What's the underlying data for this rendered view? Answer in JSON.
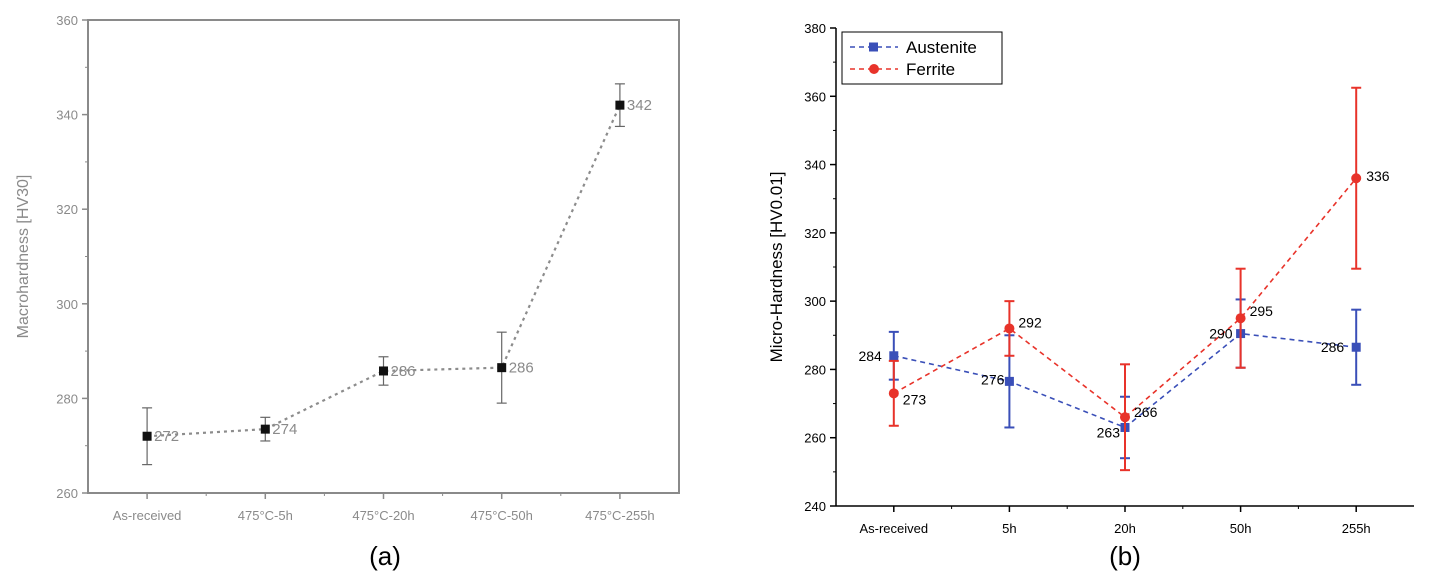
{
  "chart_data": [
    {
      "type": "line",
      "panel_label": "(a)",
      "ylabel": "Macrohardness [HV30]",
      "xlabel": "",
      "ylim": [
        260,
        360
      ],
      "yticks": [
        260,
        280,
        300,
        320,
        340,
        360
      ],
      "categories": [
        "As-received",
        "475°C-5h",
        "475°C-20h",
        "475°C-50h",
        "475°C-255h"
      ],
      "grid": false,
      "series": [
        {
          "values": [
            272,
            273.5,
            285.8,
            286.5,
            342
          ],
          "data_labels": [
            "272",
            "274",
            "286",
            "286",
            "342"
          ],
          "error": [
            6,
            2.5,
            3,
            7.5,
            4.5
          ],
          "color": "#8c8c8c",
          "marker_color": "#111111",
          "marker": "square",
          "line_style": "dotted"
        }
      ]
    },
    {
      "type": "line",
      "panel_label": "(b)",
      "ylabel": "Micro-Hardness [HV0.01]",
      "xlabel": "",
      "ylim": [
        240,
        380
      ],
      "yticks": [
        240,
        260,
        280,
        300,
        320,
        340,
        360,
        380
      ],
      "categories": [
        "As-received",
        "5h",
        "20h",
        "50h",
        "255h"
      ],
      "grid": false,
      "legend_position": "top-left",
      "series": [
        {
          "name": "Austenite",
          "values": [
            284,
            276.5,
            263,
            290.5,
            286.5
          ],
          "data_labels": [
            "284",
            "276",
            "263",
            "290",
            "286"
          ],
          "error": [
            7,
            13.5,
            9,
            10,
            11
          ],
          "color": "#3a4fb8",
          "marker": "square",
          "line_style": "dashed"
        },
        {
          "name": "Ferrite",
          "values": [
            273,
            292,
            266,
            295,
            336
          ],
          "data_labels": [
            "273",
            "292",
            "266",
            "295",
            "336"
          ],
          "error": [
            9.5,
            8,
            15.5,
            14.5,
            26.5
          ],
          "color": "#e8332a",
          "marker": "circle",
          "line_style": "dashed"
        }
      ]
    }
  ]
}
